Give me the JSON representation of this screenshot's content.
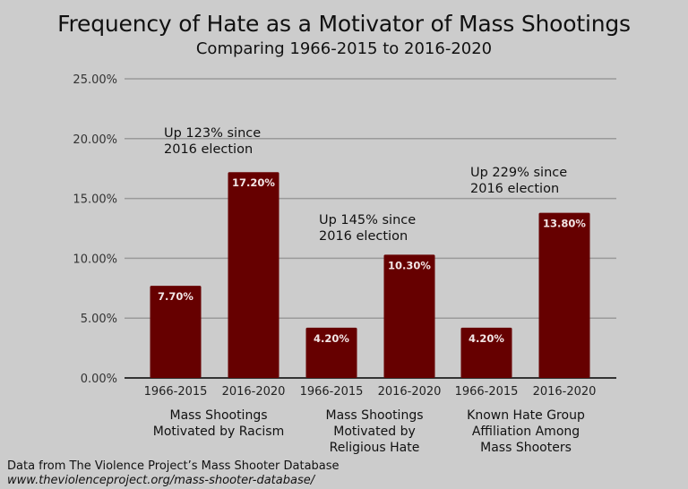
{
  "chart_data": {
    "type": "bar",
    "title": "Frequency of Hate as a Motivator of Mass Shootings",
    "subtitle": "Comparing 1966-2015 to 2016-2020",
    "xlabel": "",
    "ylabel": "",
    "ylim": [
      0,
      25
    ],
    "yticks": [
      "0.00%",
      "5.00%",
      "10.00%",
      "15.00%",
      "20.00%",
      "25.00%"
    ],
    "ytick_values": [
      0,
      5,
      10,
      15,
      20,
      25
    ],
    "grid": true,
    "bar_color": "#660000",
    "categories": [
      "1966-2015",
      "2016-2020",
      "1966-2015",
      "2016-2020",
      "1966-2015",
      "2016-2020"
    ],
    "values": [
      7.7,
      17.2,
      4.2,
      10.3,
      4.2,
      13.8
    ],
    "data_labels": [
      "7.70%",
      "17.20%",
      "4.20%",
      "10.30%",
      "4.20%",
      "13.80%"
    ],
    "groups": [
      {
        "lines": [
          "Mass Shootings",
          "Motivated by Racism"
        ],
        "annotation": [
          "Up 123% since",
          "2016 election"
        ]
      },
      {
        "lines": [
          "Mass Shootings",
          "Motivated by",
          "Religious Hate"
        ],
        "annotation": [
          "Up 145% since",
          "2016 election"
        ]
      },
      {
        "lines": [
          "Known Hate Group",
          "Affiliation Among",
          "Mass Shooters"
        ],
        "annotation": [
          "Up 229% since",
          "2016 election"
        ]
      }
    ]
  },
  "source": {
    "line1": "Data from The Violence Project’s Mass Shooter Database",
    "line2": "www.theviolenceproject.org/mass-shooter-database/"
  }
}
